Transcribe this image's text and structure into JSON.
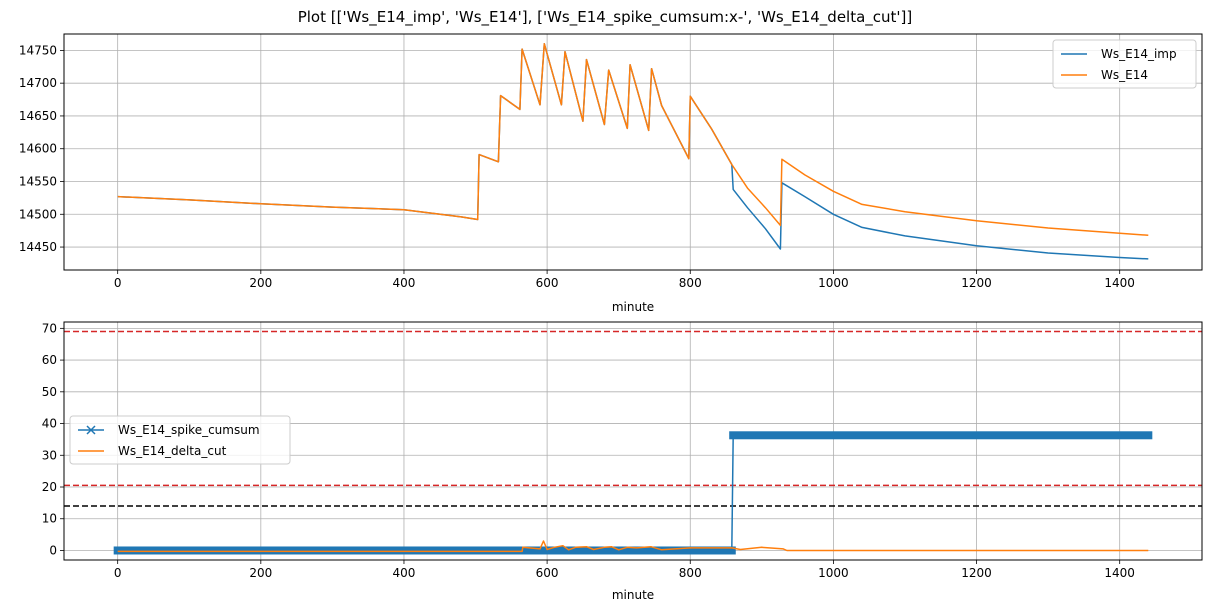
{
  "figure": {
    "title": "Plot [['Ws_E14_imp', 'Ws_E14'], ['Ws_E14_spike_cumsum:x-', 'Ws_E14_delta_cut']]"
  },
  "colors": {
    "blue": "#1f77b4",
    "orange": "#ff7f0e",
    "red_dashed": "#d62728",
    "black_dashed": "#000000",
    "grid": "#b0b0b0"
  },
  "chart_data": [
    {
      "type": "line",
      "xlabel": "minute",
      "ylabel": "",
      "xlim": [
        -75,
        1515
      ],
      "ylim": [
        14415,
        14775
      ],
      "xticks": [
        0,
        200,
        400,
        600,
        800,
        1000,
        1200,
        1400
      ],
      "yticks": [
        14450,
        14500,
        14550,
        14600,
        14650,
        14700,
        14750
      ],
      "grid": true,
      "legend": "top-right",
      "series": [
        {
          "name": "Ws_E14_imp",
          "color": "#1f77b4",
          "points": [
            [
              0,
              14527
            ],
            [
              100,
              14522
            ],
            [
              200,
              14516
            ],
            [
              300,
              14511
            ],
            [
              400,
              14507
            ],
            [
              480,
              14496
            ],
            [
              503,
              14492
            ],
            [
              505,
              14591
            ],
            [
              532,
              14580
            ],
            [
              535,
              14681
            ],
            [
              562,
              14660
            ],
            [
              565,
              14752
            ],
            [
              590,
              14667
            ],
            [
              596,
              14760
            ],
            [
              620,
              14667
            ],
            [
              625,
              14748
            ],
            [
              650,
              14642
            ],
            [
              655,
              14736
            ],
            [
              680,
              14637
            ],
            [
              686,
              14720
            ],
            [
              712,
              14631
            ],
            [
              716,
              14728
            ],
            [
              742,
              14628
            ],
            [
              746,
              14722
            ],
            [
              760,
              14666
            ],
            [
              798,
              14585
            ],
            [
              800,
              14680
            ],
            [
              830,
              14630
            ],
            [
              858,
              14576
            ],
            [
              860,
              14538
            ],
            [
              880,
              14510
            ],
            [
              905,
              14478
            ],
            [
              926,
              14447
            ],
            [
              928,
              14548
            ],
            [
              960,
              14527
            ],
            [
              1000,
              14500
            ],
            [
              1040,
              14480
            ],
            [
              1100,
              14467
            ],
            [
              1200,
              14452
            ],
            [
              1300,
              14441
            ],
            [
              1400,
              14434
            ],
            [
              1440,
              14432
            ]
          ]
        },
        {
          "name": "Ws_E14",
          "color": "#ff7f0e",
          "points": [
            [
              0,
              14527
            ],
            [
              100,
              14522
            ],
            [
              200,
              14516
            ],
            [
              300,
              14511
            ],
            [
              400,
              14507
            ],
            [
              480,
              14496
            ],
            [
              503,
              14492
            ],
            [
              505,
              14591
            ],
            [
              532,
              14580
            ],
            [
              535,
              14681
            ],
            [
              562,
              14660
            ],
            [
              565,
              14752
            ],
            [
              590,
              14667
            ],
            [
              596,
              14760
            ],
            [
              620,
              14667
            ],
            [
              625,
              14748
            ],
            [
              650,
              14642
            ],
            [
              655,
              14736
            ],
            [
              680,
              14637
            ],
            [
              686,
              14720
            ],
            [
              712,
              14631
            ],
            [
              716,
              14728
            ],
            [
              742,
              14628
            ],
            [
              746,
              14722
            ],
            [
              760,
              14666
            ],
            [
              798,
              14585
            ],
            [
              800,
              14680
            ],
            [
              830,
              14630
            ],
            [
              858,
              14576
            ],
            [
              880,
              14540
            ],
            [
              905,
              14510
            ],
            [
              926,
              14483
            ],
            [
              928,
              14584
            ],
            [
              960,
              14560
            ],
            [
              1000,
              14535
            ],
            [
              1040,
              14515
            ],
            [
              1100,
              14504
            ],
            [
              1200,
              14490
            ],
            [
              1300,
              14479
            ],
            [
              1400,
              14471
            ],
            [
              1440,
              14468
            ]
          ]
        }
      ]
    },
    {
      "type": "line",
      "xlabel": "minute",
      "ylabel": "",
      "xlim": [
        -75,
        1515
      ],
      "ylim": [
        -3,
        72
      ],
      "xticks": [
        0,
        200,
        400,
        600,
        800,
        1000,
        1200,
        1400
      ],
      "yticks": [
        0,
        10,
        20,
        30,
        40,
        50,
        60,
        70
      ],
      "grid": true,
      "legend": "center-left",
      "hlines": [
        {
          "y": 69,
          "color": "#d62728"
        },
        {
          "y": 20.5,
          "color": "#d62728"
        },
        {
          "y": 14,
          "color": "#000000"
        }
      ],
      "series": [
        {
          "name": "Ws_E14_spike_cumsum",
          "color": "#1f77b4",
          "marker": "x",
          "points": [
            [
              0,
              0
            ],
            [
              858,
              0
            ],
            [
              860,
              36.3
            ],
            [
              1440,
              36.3
            ]
          ],
          "marker_ranges": [
            [
              0,
              858,
              0
            ],
            [
              860,
              1440,
              36.3
            ]
          ]
        },
        {
          "name": "Ws_E14_delta_cut",
          "color": "#ff7f0e",
          "points": [
            [
              0,
              -0.3
            ],
            [
              565,
              -0.3
            ],
            [
              566,
              1
            ],
            [
              590,
              0.5
            ],
            [
              595,
              3
            ],
            [
              600,
              0.3
            ],
            [
              610,
              1
            ],
            [
              622,
              1.5
            ],
            [
              630,
              0.2
            ],
            [
              640,
              1
            ],
            [
              655,
              1.2
            ],
            [
              665,
              0.3
            ],
            [
              680,
              1
            ],
            [
              690,
              1.2
            ],
            [
              700,
              0.2
            ],
            [
              712,
              1
            ],
            [
              725,
              0.8
            ],
            [
              745,
              1.2
            ],
            [
              760,
              0.2
            ],
            [
              800,
              0.8
            ],
            [
              858,
              0.8
            ],
            [
              870,
              0.3
            ],
            [
              900,
              1
            ],
            [
              930,
              0.5
            ],
            [
              935,
              0
            ],
            [
              1440,
              0
            ]
          ]
        }
      ]
    }
  ]
}
